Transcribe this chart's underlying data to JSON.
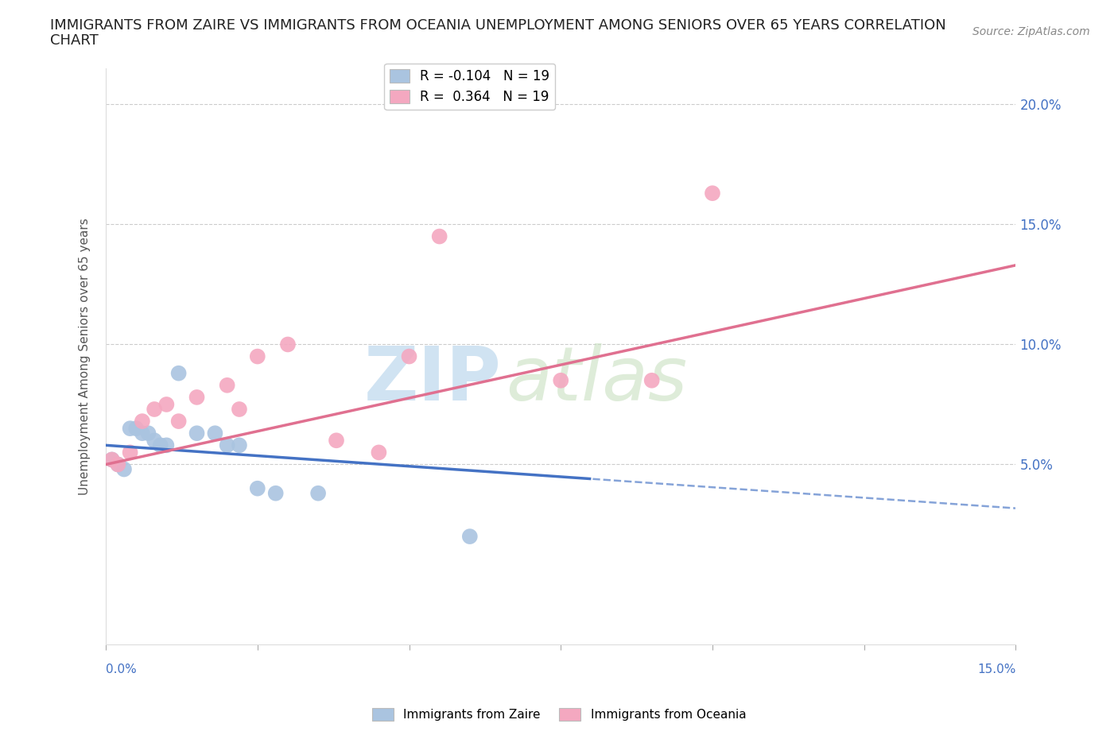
{
  "title_line1": "IMMIGRANTS FROM ZAIRE VS IMMIGRANTS FROM OCEANIA UNEMPLOYMENT AMONG SENIORS OVER 65 YEARS CORRELATION",
  "title_line2": "CHART",
  "source": "Source: ZipAtlas.com",
  "ylabel": "Unemployment Among Seniors over 65 years",
  "legend_blue": "R = -0.104   N = 19",
  "legend_pink": "R =  0.364   N = 19",
  "legend_label_blue": "Immigrants from Zaire",
  "legend_label_pink": "Immigrants from Oceania",
  "blue_color": "#aac4e0",
  "pink_color": "#f4a8c0",
  "line_blue": "#4472c4",
  "line_pink": "#e07090",
  "watermark_zip": "ZIP",
  "watermark_atlas": "atlas",
  "xlim": [
    0.0,
    0.15
  ],
  "ylim": [
    -0.025,
    0.215
  ],
  "y_ticks": [
    0.05,
    0.1,
    0.15,
    0.2
  ],
  "y_tick_labels": [
    "5.0%",
    "10.0%",
    "15.0%",
    "20.0%"
  ],
  "x_tick_positions": [
    0.0,
    0.025,
    0.05,
    0.075,
    0.1,
    0.125,
    0.15
  ],
  "blue_line_solid_end": 0.08,
  "blue_line_start_y": 0.058,
  "blue_line_end_y": 0.044,
  "blue_line_dashed_end_y": 0.015,
  "pink_line_start_y": 0.05,
  "pink_line_end_y": 0.133,
  "zaire_points": [
    [
      0.001,
      0.052
    ],
    [
      0.002,
      0.05
    ],
    [
      0.003,
      0.048
    ],
    [
      0.004,
      0.065
    ],
    [
      0.005,
      0.065
    ],
    [
      0.006,
      0.063
    ],
    [
      0.007,
      0.063
    ],
    [
      0.008,
      0.06
    ],
    [
      0.009,
      0.058
    ],
    [
      0.01,
      0.058
    ],
    [
      0.012,
      0.088
    ],
    [
      0.015,
      0.063
    ],
    [
      0.018,
      0.063
    ],
    [
      0.02,
      0.058
    ],
    [
      0.022,
      0.058
    ],
    [
      0.025,
      0.04
    ],
    [
      0.028,
      0.038
    ],
    [
      0.035,
      0.038
    ],
    [
      0.06,
      0.02
    ]
  ],
  "oceania_points": [
    [
      0.001,
      0.052
    ],
    [
      0.002,
      0.05
    ],
    [
      0.004,
      0.055
    ],
    [
      0.006,
      0.068
    ],
    [
      0.008,
      0.073
    ],
    [
      0.01,
      0.075
    ],
    [
      0.012,
      0.068
    ],
    [
      0.015,
      0.078
    ],
    [
      0.02,
      0.083
    ],
    [
      0.022,
      0.073
    ],
    [
      0.025,
      0.095
    ],
    [
      0.03,
      0.1
    ],
    [
      0.038,
      0.06
    ],
    [
      0.045,
      0.055
    ],
    [
      0.05,
      0.095
    ],
    [
      0.055,
      0.145
    ],
    [
      0.075,
      0.085
    ],
    [
      0.09,
      0.085
    ],
    [
      0.1,
      0.163
    ]
  ]
}
